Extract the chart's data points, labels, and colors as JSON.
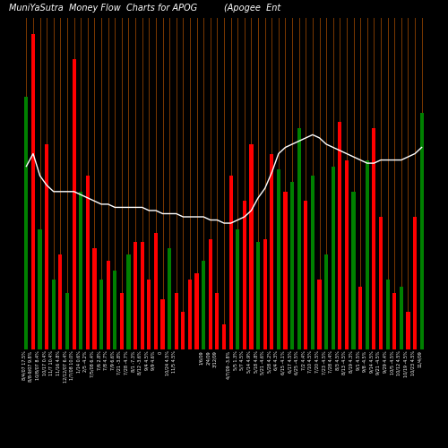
{
  "title1": "MuniYaSutra  Money Flow  Charts for APOG",
  "title2": "(Apogee  Ent",
  "background_color": "#000000",
  "bar_colors": [
    "green",
    "red",
    "green",
    "red",
    "green",
    "red",
    "green",
    "red",
    "green",
    "red",
    "red",
    "green",
    "red",
    "green",
    "red",
    "green",
    "red",
    "red",
    "red",
    "red",
    "red",
    "green",
    "red",
    "red",
    "red",
    "red",
    "green",
    "red",
    "red",
    "red",
    "red",
    "green",
    "red",
    "red",
    "green",
    "red",
    "red",
    "green",
    "red",
    "green",
    "green",
    "red",
    "green",
    "red",
    "green",
    "green",
    "red",
    "red",
    "green",
    "red",
    "green",
    "red",
    "red",
    "green",
    "red",
    "green",
    "red",
    "red",
    "green"
  ],
  "bar_heights": [
    0.8,
    1.0,
    0.38,
    0.65,
    0.22,
    0.3,
    0.18,
    0.92,
    0.5,
    0.55,
    0.32,
    0.22,
    0.28,
    0.25,
    0.18,
    0.3,
    0.34,
    0.34,
    0.22,
    0.37,
    0.16,
    0.32,
    0.18,
    0.12,
    0.22,
    0.24,
    0.28,
    0.35,
    0.18,
    0.08,
    0.55,
    0.38,
    0.47,
    0.65,
    0.34,
    0.35,
    0.62,
    0.57,
    0.5,
    0.53,
    0.7,
    0.47,
    0.55,
    0.22,
    0.3,
    0.58,
    0.72,
    0.6,
    0.5,
    0.2,
    0.6,
    0.7,
    0.42,
    0.22,
    0.18,
    0.2,
    0.12,
    0.42,
    0.75
  ],
  "line_values": [
    0.58,
    0.62,
    0.55,
    0.52,
    0.5,
    0.5,
    0.5,
    0.5,
    0.49,
    0.48,
    0.47,
    0.46,
    0.46,
    0.45,
    0.45,
    0.45,
    0.45,
    0.45,
    0.44,
    0.44,
    0.43,
    0.43,
    0.43,
    0.42,
    0.42,
    0.42,
    0.42,
    0.41,
    0.41,
    0.4,
    0.4,
    0.41,
    0.42,
    0.44,
    0.48,
    0.51,
    0.56,
    0.62,
    0.64,
    0.65,
    0.66,
    0.67,
    0.68,
    0.67,
    0.65,
    0.64,
    0.63,
    0.62,
    0.61,
    0.6,
    0.59,
    0.59,
    0.6,
    0.6,
    0.6,
    0.6,
    0.61,
    0.62,
    0.64
  ],
  "x_labels": [
    "8/4/07 17.5%",
    "8/8-9/07 9.8%",
    "10/8/07 8.4%",
    "10/17 0.4%",
    "11/7 10.4%",
    "11/16 4.8%",
    "12/12/07 6.4%",
    "1/7/08 10.0%",
    "1/14 0.6%",
    "2/5 -4.2%",
    "7/5/08 6.4%",
    "7/6 2.8%",
    "7/8 4.7%",
    "7/9 6.6%",
    "7/21 -3.8%",
    "7/28 -4.7%",
    "8/1 -7.3%",
    "8/12 -3.6%",
    "9/4 4.5%",
    "9/9 4.6%",
    "0",
    "10/24 4.5%",
    "11/5 4.5%",
    "",
    "",
    "",
    "1/6/09",
    "2/4/09",
    "3/12/09",
    "",
    "4/7/09 -3.8%",
    "5/5 1.3%",
    "5/7 4.5%",
    "5/14 4.9%",
    "5/18 4.8%",
    "5/21 -4.6%",
    "5/28 4.2%",
    "6/4 4.3%",
    "6/15 -4.1%",
    "6/17 4.5%",
    "6/25 -4.5%",
    "7/2 4.4%",
    "7/10 4.5%",
    "7/20 4.5%",
    "7/23 -4.5%",
    "7/28 4.4%",
    "8/3 4.5%",
    "8/13 -4.5%",
    "8/19 4.3%",
    "9/1 4.5%",
    "9/8 -4.5%",
    "9/14 4.5%",
    "9/21 -4.5%",
    "9/29 4.4%",
    "10/5 -4.5%",
    "10/12 4.5%",
    "10/19 -4.5%",
    "10/23 4.5%",
    "11/4/09"
  ],
  "grid_color": "#7B3800",
  "line_color": "#ffffff",
  "ylim": [
    0,
    1.05
  ],
  "title_fontsize": 7,
  "label_fontsize": 3.5
}
